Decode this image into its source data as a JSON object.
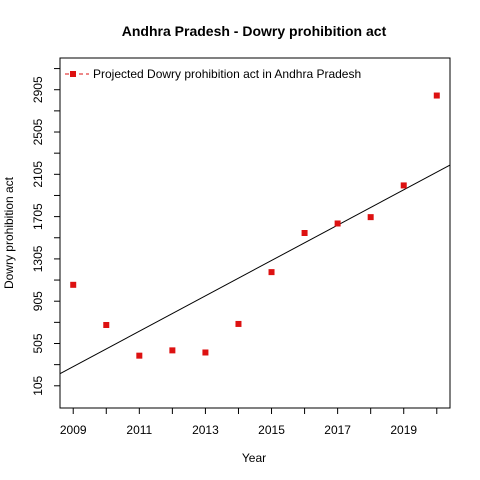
{
  "chart_data": {
    "type": "scatter",
    "title": "Andhra Pradesh  -  Dowry prohibition act",
    "xlabel": "Year",
    "ylabel": "Dowry prohibition act",
    "xlim": [
      2008.6,
      2020.4
    ],
    "ylim": [
      -105,
      3205
    ],
    "x_ticks": [
      2009,
      2010,
      2011,
      2012,
      2013,
      2014,
      2015,
      2016,
      2017,
      2018,
      2019,
      2020
    ],
    "x_tick_labels": [
      "2009",
      "",
      "2011",
      "",
      "2013",
      "",
      "2015",
      "",
      "2017",
      "",
      "2019",
      ""
    ],
    "y_ticks": [
      105,
      305,
      505,
      705,
      905,
      1105,
      1305,
      1505,
      1705,
      1905,
      2105,
      2305,
      2505,
      2705,
      2905,
      3105
    ],
    "y_tick_labels": [
      "105",
      "",
      "505",
      "",
      "905",
      "",
      "1305",
      "",
      "1705",
      "",
      "2105",
      "",
      "2505",
      "",
      "2905",
      ""
    ],
    "legend": {
      "placement": "top-left",
      "label": "Projected  Dowry prohibition act  in  Andhra Pradesh"
    },
    "grid": false,
    "series": [
      {
        "name": "Projected  Dowry prohibition act  in  Andhra Pradesh",
        "color": "#dd1111",
        "x": [
          2009,
          2010,
          2011,
          2012,
          2013,
          2014,
          2015,
          2016,
          2017,
          2018,
          2019,
          2020
        ],
        "y": [
          1060,
          680,
          390,
          440,
          420,
          690,
          1180,
          1550,
          1640,
          1700,
          2000,
          2850
        ]
      }
    ],
    "trend_line": {
      "color": "#000000",
      "x": [
        2008.6,
        2020.4
      ],
      "y": [
        220,
        2193
      ]
    }
  }
}
